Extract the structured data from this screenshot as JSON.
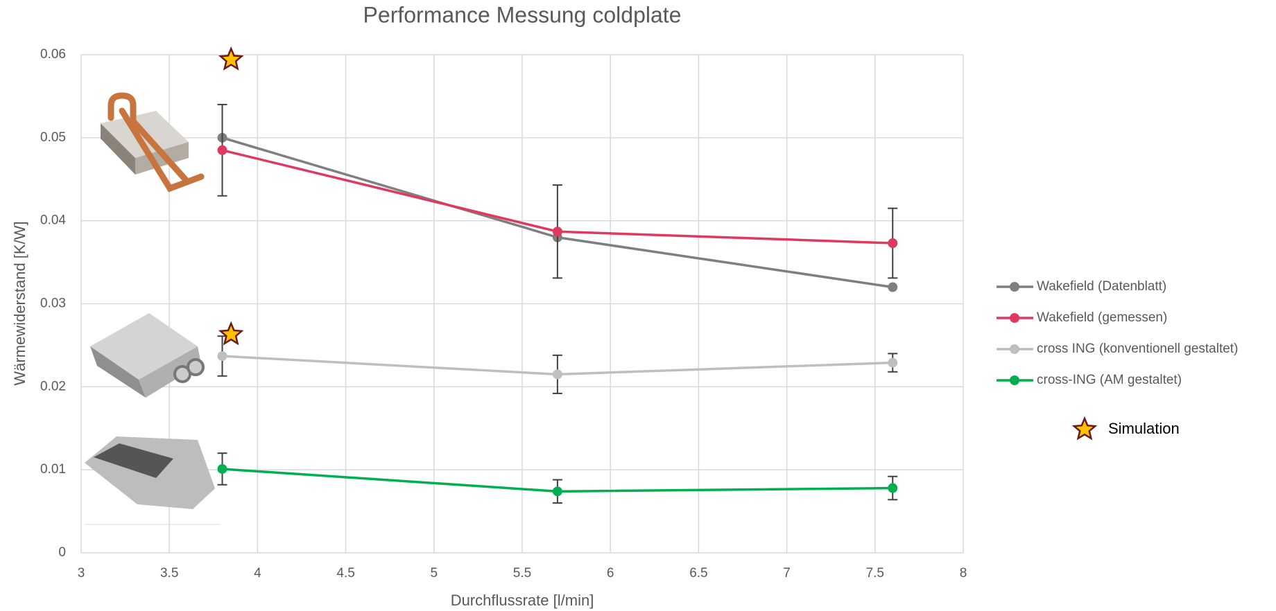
{
  "chart_data": {
    "type": "line",
    "title": "Performance Messung coldplate",
    "x_label": "Durchflussrate [l/min]",
    "y_label": "Wärmewiderstand [K/W]",
    "xlim": [
      3,
      8
    ],
    "xticks": [
      3,
      3.5,
      4,
      4.5,
      5,
      5.5,
      6,
      6.5,
      7,
      7.5,
      8
    ],
    "ylim": [
      0,
      0.06
    ],
    "yticks": [
      0,
      0.01,
      0.02,
      0.03,
      0.04,
      0.05,
      0.06
    ],
    "grid": true,
    "legend": "right",
    "x": [
      3.8,
      5.7,
      7.6
    ],
    "series": [
      {
        "name": "Wakefield (Datenblatt)",
        "color": "#7f7f7f",
        "values": [
          0.05,
          0.038,
          0.032
        ]
      },
      {
        "name": "Wakefield (gemessen)",
        "color": "#e0395f",
        "values": [
          0.0485,
          0.0387,
          0.0373
        ],
        "errors": [
          0.0055,
          0.0056,
          0.0042
        ]
      },
      {
        "name": "cross ING (konventionell gestaltet)",
        "color": "#bfbfbf",
        "values": [
          0.0237,
          0.0215,
          0.0229
        ],
        "errors": [
          0.0024,
          0.0023,
          0.0011
        ]
      },
      {
        "name": "cross-ING (AM gestaltet)",
        "color": "#00b050",
        "values": [
          0.0101,
          0.0074,
          0.0078
        ],
        "errors": [
          0.0019,
          0.0014,
          0.0014
        ]
      },
      {
        "name": "Simulation",
        "color": "#ffc000",
        "marker": "star",
        "x": [
          3.85,
          3.85
        ],
        "values": [
          0.0594,
          0.0263
        ]
      }
    ]
  }
}
